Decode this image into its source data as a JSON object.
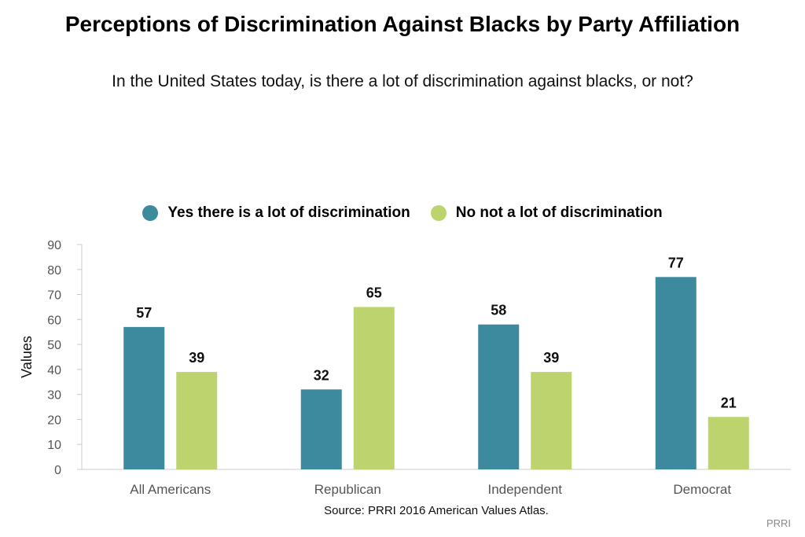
{
  "chart_data": {
    "type": "bar",
    "title": "Perceptions of Discrimination Against Blacks by Party Affiliation",
    "subtitle": "In the United States today, is there a lot of discrimination against blacks, or not?",
    "categories": [
      "All Americans",
      "Republican",
      "Independent",
      "Democrat"
    ],
    "series": [
      {
        "name": "Yes there is a lot of discrimination",
        "color": "#3d8a9f",
        "values": [
          57,
          32,
          58,
          77
        ]
      },
      {
        "name": "No not a lot of discrimination",
        "color": "#bdd46e",
        "values": [
          39,
          65,
          39,
          21
        ]
      }
    ],
    "xlabel": "",
    "ylabel": "Values",
    "ylim": [
      0,
      90
    ],
    "yticks": [
      0,
      10,
      20,
      30,
      40,
      50,
      60,
      70,
      80,
      90
    ],
    "grid": false,
    "legend_position": "top"
  },
  "source": "Source: PRRI 2016 American Values Atlas.",
  "credit": "PRRI"
}
